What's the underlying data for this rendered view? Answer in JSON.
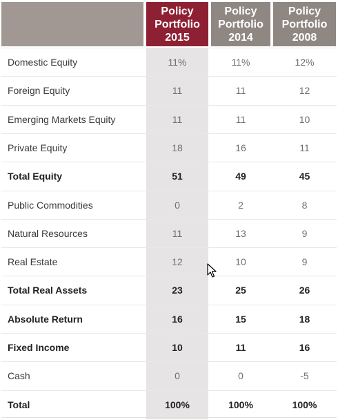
{
  "headers": [
    "Policy\nPortfolio\n2015",
    "Policy\nPortfolio\n2014",
    "Policy\nPortfolio\n2008"
  ],
  "rows": [
    {
      "label": "Domestic Equity",
      "values": [
        "11%",
        "11%",
        "12%"
      ],
      "bold": false
    },
    {
      "label": "Foreign Equity",
      "values": [
        "11",
        "11",
        "12"
      ],
      "bold": false
    },
    {
      "label": "Emerging Markets Equity",
      "values": [
        "11",
        "11",
        "10"
      ],
      "bold": false
    },
    {
      "label": "Private Equity",
      "values": [
        "18",
        "16",
        "11"
      ],
      "bold": false
    },
    {
      "label": "Total Equity",
      "values": [
        "51",
        "49",
        "45"
      ],
      "bold": true
    },
    {
      "label": "Public Commodities",
      "values": [
        "0",
        "2",
        "8"
      ],
      "bold": false
    },
    {
      "label": "Natural Resources",
      "values": [
        "11",
        "13",
        "9"
      ],
      "bold": false
    },
    {
      "label": "Real Estate",
      "values": [
        "12",
        "10",
        "9"
      ],
      "bold": false
    },
    {
      "label": "Total Real Assets",
      "values": [
        "23",
        "25",
        "26"
      ],
      "bold": true
    },
    {
      "label": "Absolute Return",
      "values": [
        "16",
        "15",
        "18"
      ],
      "bold": true
    },
    {
      "label": "Fixed Income",
      "values": [
        "10",
        "11",
        "16"
      ],
      "bold": true
    },
    {
      "label": "Cash",
      "values": [
        "0",
        "0",
        "-5"
      ],
      "bold": false
    },
    {
      "label": "Total",
      "values": [
        "100%",
        "100%",
        "100%"
      ],
      "bold": true
    }
  ],
  "colors": {
    "highlight_header": "#8e2033",
    "header": "#8f8782",
    "label_header": "#a19893",
    "highlight_column": "#e6e4e4"
  },
  "icons": {
    "cursor": "mouse-pointer-icon"
  }
}
